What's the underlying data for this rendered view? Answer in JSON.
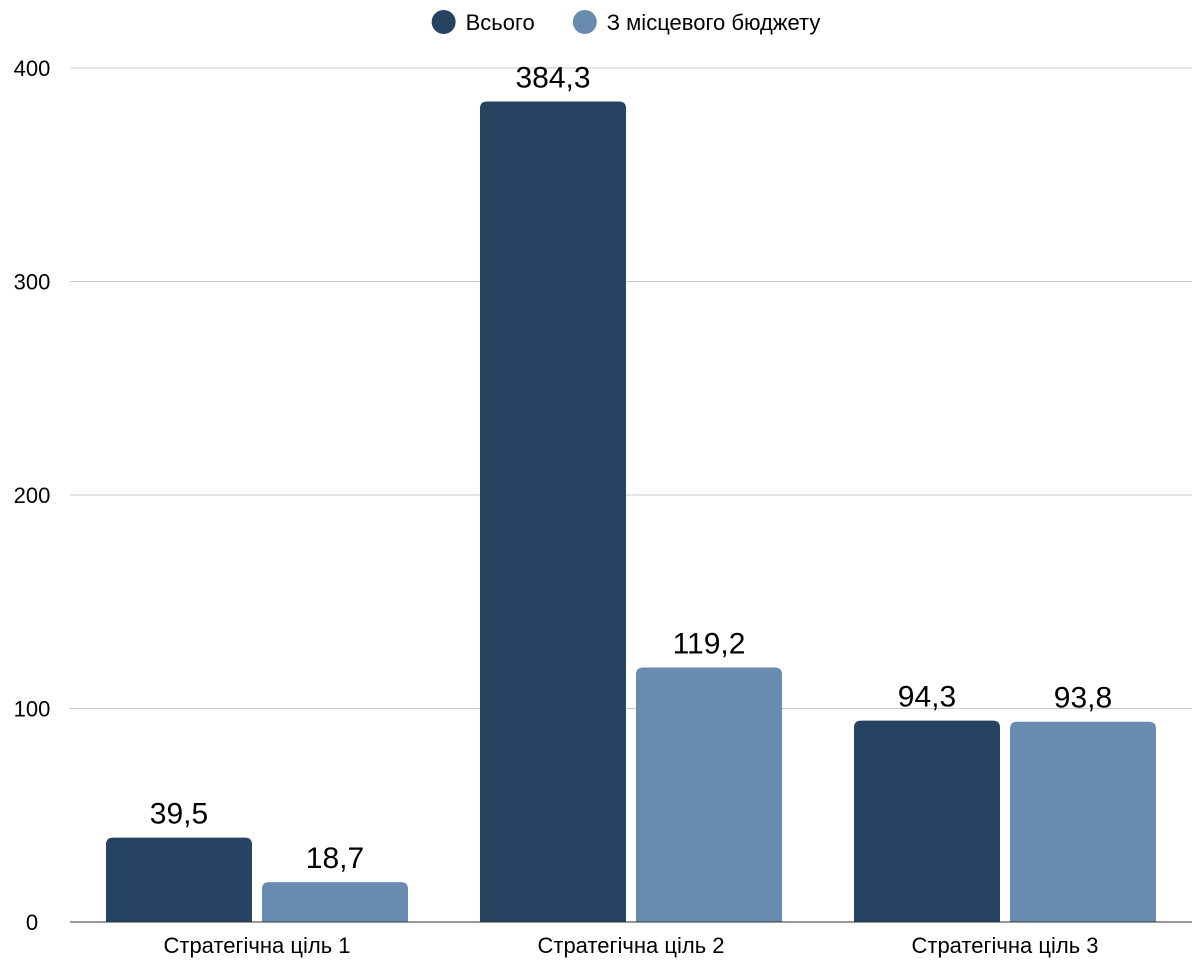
{
  "chart_data": {
    "type": "bar",
    "categories": [
      "Стратегічна ціль 1",
      "Стратегічна ціль 2",
      "Стратегічна ціль 3"
    ],
    "series": [
      {
        "name": "Всього",
        "color": "#264361",
        "values": [
          39.5,
          384.3,
          94.3
        ],
        "labels": [
          "39,5",
          "384,3",
          "94,3"
        ]
      },
      {
        "name": "З місцевого бюджету",
        "color": "#6a8bb0",
        "values": [
          18.7,
          119.2,
          93.8
        ],
        "labels": [
          "18,7",
          "119,2",
          "93,8"
        ]
      }
    ],
    "ylim": [
      0,
      400
    ],
    "yticks": [
      0,
      100,
      200,
      300,
      400
    ],
    "grid": true,
    "legend_position": "top-center",
    "title": "",
    "xlabel": "",
    "ylabel": ""
  }
}
